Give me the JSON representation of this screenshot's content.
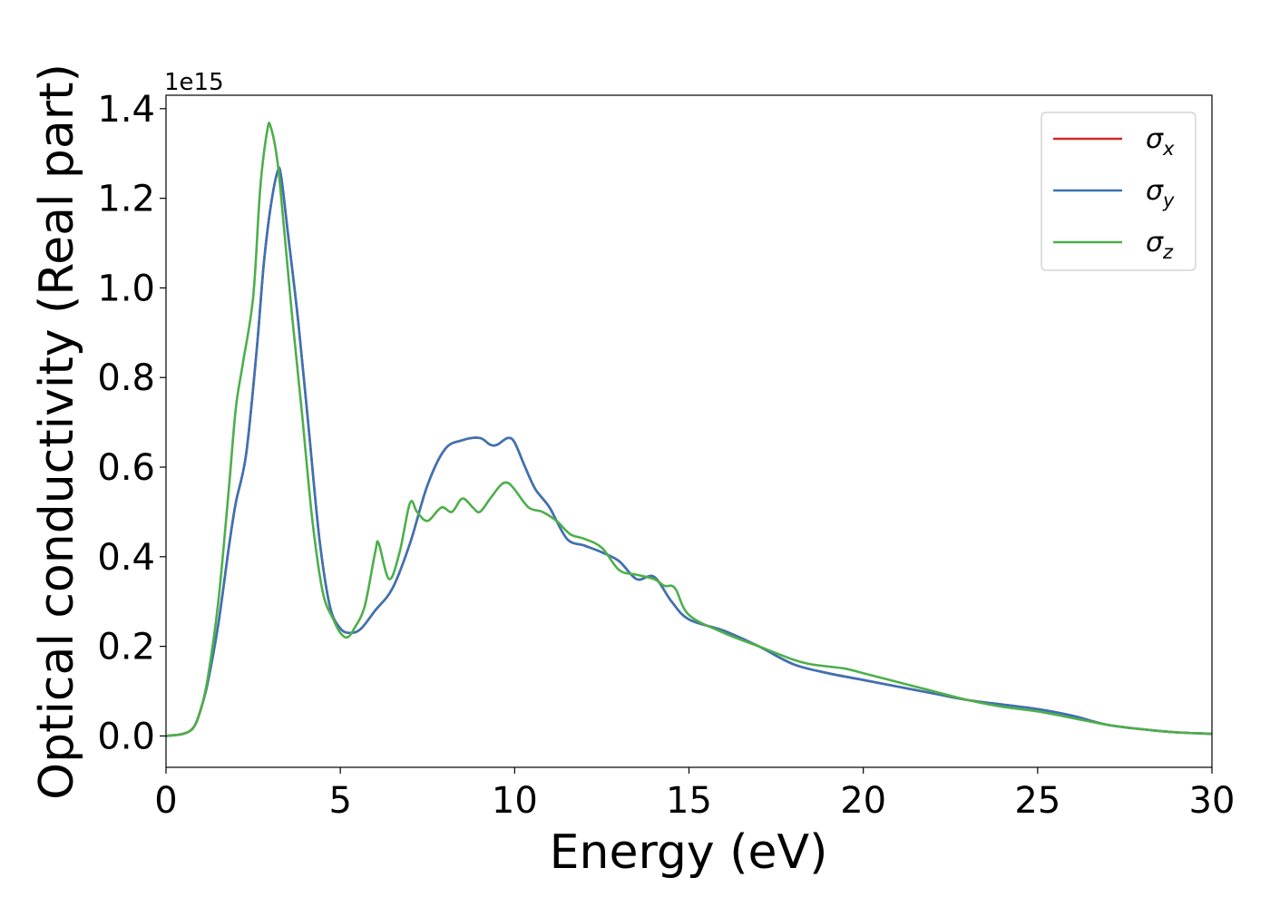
{
  "chart_data": {
    "type": "line",
    "xlabel": "Energy (eV)",
    "ylabel": "Optical conductivity (Real part)",
    "y_offset_text": "1e15",
    "y_scale": 1000000000000000.0,
    "xlim": [
      0,
      30
    ],
    "ylim": [
      -0.07,
      1.43
    ],
    "xticks": [
      0,
      5,
      10,
      15,
      20,
      25,
      30
    ],
    "xtick_labels": [
      "0",
      "5",
      "10",
      "15",
      "20",
      "25",
      "30"
    ],
    "yticks": [
      0.0,
      0.2,
      0.4,
      0.6,
      0.8,
      1.0,
      1.2,
      1.4
    ],
    "ytick_labels": [
      "0.0",
      "0.2",
      "0.4",
      "0.6",
      "0.8",
      "1.0",
      "1.2",
      "1.4"
    ],
    "grid": false,
    "legend_position": "top-right",
    "series": [
      {
        "name": "σx",
        "symbol": "σ",
        "subscript": "x",
        "color": "#d62728",
        "x": [
          0,
          0.5,
          0.8,
          1.0,
          1.2,
          1.5,
          1.8,
          2.0,
          2.3,
          2.6,
          2.8,
          3.0,
          3.2,
          3.3,
          3.5,
          3.8,
          4.1,
          4.4,
          4.7,
          5.0,
          5.3,
          5.6,
          6.0,
          6.5,
          7.0,
          7.5,
          8.0,
          8.5,
          9.0,
          9.3,
          9.5,
          9.8,
          10.0,
          10.3,
          10.6,
          11.0,
          11.5,
          12.0,
          12.5,
          13.0,
          13.5,
          14.0,
          14.5,
          15.0,
          16.0,
          17.0,
          18.0,
          19.0,
          20.0,
          21.0,
          22.0,
          23.0,
          24.0,
          25.0,
          26.0,
          27.0,
          28.0,
          29.0,
          30.0
        ],
        "y": [
          0.0,
          0.005,
          0.02,
          0.06,
          0.12,
          0.25,
          0.42,
          0.52,
          0.63,
          0.86,
          1.05,
          1.18,
          1.26,
          1.25,
          1.12,
          0.92,
          0.68,
          0.44,
          0.29,
          0.24,
          0.23,
          0.24,
          0.28,
          0.33,
          0.43,
          0.56,
          0.64,
          0.66,
          0.665,
          0.65,
          0.65,
          0.665,
          0.655,
          0.6,
          0.55,
          0.51,
          0.44,
          0.425,
          0.41,
          0.39,
          0.35,
          0.355,
          0.3,
          0.26,
          0.235,
          0.2,
          0.16,
          0.14,
          0.125,
          0.11,
          0.095,
          0.08,
          0.07,
          0.06,
          0.045,
          0.025,
          0.015,
          0.008,
          0.005
        ]
      },
      {
        "name": "σy",
        "symbol": "σ",
        "subscript": "y",
        "color": "#3a73b5",
        "x": [
          0,
          0.5,
          0.8,
          1.0,
          1.2,
          1.5,
          1.8,
          2.0,
          2.3,
          2.6,
          2.8,
          3.0,
          3.2,
          3.3,
          3.5,
          3.8,
          4.1,
          4.4,
          4.7,
          5.0,
          5.3,
          5.6,
          6.0,
          6.5,
          7.0,
          7.5,
          8.0,
          8.5,
          9.0,
          9.3,
          9.5,
          9.8,
          10.0,
          10.3,
          10.6,
          11.0,
          11.5,
          12.0,
          12.5,
          13.0,
          13.5,
          14.0,
          14.5,
          15.0,
          16.0,
          17.0,
          18.0,
          19.0,
          20.0,
          21.0,
          22.0,
          23.0,
          24.0,
          25.0,
          26.0,
          27.0,
          28.0,
          29.0,
          30.0
        ],
        "y": [
          0.0,
          0.005,
          0.02,
          0.06,
          0.12,
          0.25,
          0.42,
          0.52,
          0.63,
          0.86,
          1.05,
          1.18,
          1.26,
          1.25,
          1.12,
          0.92,
          0.68,
          0.44,
          0.29,
          0.24,
          0.23,
          0.24,
          0.28,
          0.33,
          0.43,
          0.56,
          0.64,
          0.66,
          0.665,
          0.65,
          0.65,
          0.665,
          0.655,
          0.6,
          0.55,
          0.51,
          0.44,
          0.425,
          0.41,
          0.39,
          0.35,
          0.355,
          0.3,
          0.26,
          0.235,
          0.2,
          0.16,
          0.14,
          0.125,
          0.11,
          0.095,
          0.08,
          0.07,
          0.06,
          0.045,
          0.025,
          0.015,
          0.008,
          0.005
        ]
      },
      {
        "name": "σz",
        "symbol": "σ",
        "subscript": "z",
        "color": "#4daf4a",
        "x": [
          0,
          0.5,
          0.8,
          1.0,
          1.2,
          1.5,
          1.8,
          2.0,
          2.2,
          2.5,
          2.7,
          2.9,
          3.0,
          3.2,
          3.4,
          3.6,
          3.9,
          4.2,
          4.5,
          4.8,
          5.0,
          5.2,
          5.4,
          5.7,
          6.0,
          6.1,
          6.4,
          6.7,
          7.0,
          7.2,
          7.5,
          7.9,
          8.2,
          8.5,
          8.8,
          9.0,
          9.3,
          9.6,
          9.8,
          10.0,
          10.4,
          10.8,
          11.2,
          11.6,
          12.0,
          12.5,
          13.0,
          13.5,
          14.0,
          14.3,
          14.6,
          15.0,
          16.0,
          17.0,
          18.0,
          18.5,
          19.0,
          19.5,
          20.0,
          21.0,
          22.0,
          23.0,
          24.0,
          25.0,
          26.0,
          27.0,
          28.0,
          29.0,
          30.0
        ],
        "y": [
          0.0,
          0.005,
          0.02,
          0.06,
          0.13,
          0.3,
          0.55,
          0.73,
          0.83,
          0.98,
          1.22,
          1.35,
          1.36,
          1.28,
          1.12,
          0.95,
          0.72,
          0.48,
          0.32,
          0.26,
          0.23,
          0.22,
          0.24,
          0.29,
          0.41,
          0.43,
          0.35,
          0.41,
          0.52,
          0.5,
          0.48,
          0.51,
          0.5,
          0.53,
          0.51,
          0.5,
          0.53,
          0.56,
          0.565,
          0.55,
          0.51,
          0.5,
          0.48,
          0.45,
          0.44,
          0.42,
          0.37,
          0.36,
          0.35,
          0.335,
          0.33,
          0.27,
          0.23,
          0.2,
          0.17,
          0.16,
          0.155,
          0.15,
          0.14,
          0.12,
          0.1,
          0.08,
          0.065,
          0.055,
          0.04,
          0.025,
          0.015,
          0.008,
          0.005
        ]
      }
    ]
  }
}
